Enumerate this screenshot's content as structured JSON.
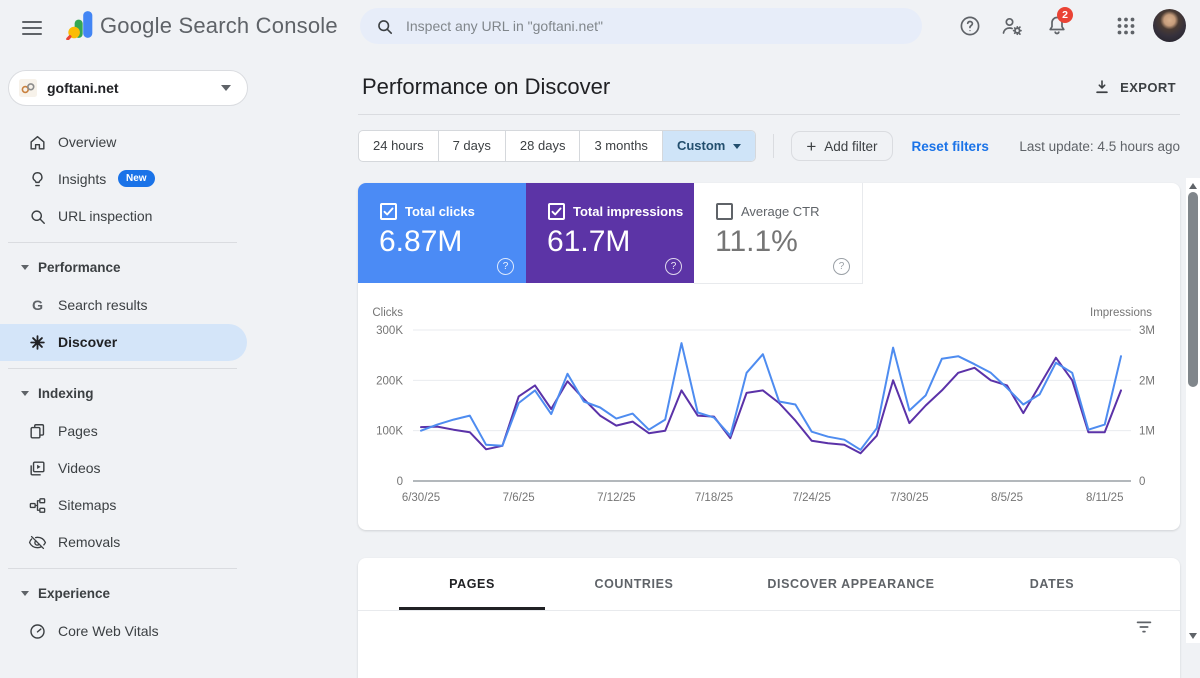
{
  "header": {
    "app_title": "Google Search Console",
    "search_placeholder": "Inspect any URL in \"goftani.net\"",
    "notification_count": "2"
  },
  "sidebar": {
    "property": "goftani.net",
    "items": [
      {
        "label": "Overview"
      },
      {
        "label": "Insights",
        "badge": "New"
      },
      {
        "label": "URL inspection"
      },
      {
        "label": "Performance",
        "type": "section"
      },
      {
        "label": "Search results"
      },
      {
        "label": "Discover",
        "selected": true
      },
      {
        "label": "Indexing",
        "type": "section"
      },
      {
        "label": "Pages"
      },
      {
        "label": "Videos"
      },
      {
        "label": "Sitemaps"
      },
      {
        "label": "Removals"
      },
      {
        "label": "Experience",
        "type": "section"
      },
      {
        "label": "Core Web Vitals"
      }
    ]
  },
  "main": {
    "page_title": "Performance on Discover",
    "export_label": "EXPORT",
    "date_ranges": [
      {
        "label": "24 hours"
      },
      {
        "label": "7 days"
      },
      {
        "label": "28 days"
      },
      {
        "label": "3 months"
      },
      {
        "label": "Custom",
        "selected": true
      }
    ],
    "add_filter_label": "Add filter",
    "reset_filters_label": "Reset filters",
    "last_update": "Last update: 4.5 hours ago",
    "metrics": [
      {
        "label": "Total clicks",
        "value": "6.87M",
        "checked": true,
        "color": "#4b8bf5"
      },
      {
        "label": "Total impressions",
        "value": "61.7M",
        "checked": true,
        "color": "#5c34a6"
      },
      {
        "label": "Average CTR",
        "value": "11.1%",
        "checked": false,
        "color": ""
      }
    ],
    "tabs": [
      {
        "label": "PAGES",
        "active": true
      },
      {
        "label": "COUNTRIES"
      },
      {
        "label": "DISCOVER APPEARANCE"
      },
      {
        "label": "DATES"
      }
    ]
  },
  "chart_data": {
    "type": "line",
    "grid": true,
    "legend_position": "none",
    "dates": [
      "6/30/25",
      "7/1/25",
      "7/2/25",
      "7/3/25",
      "7/4/25",
      "7/5/25",
      "7/6/25",
      "7/7/25",
      "7/8/25",
      "7/9/25",
      "7/10/25",
      "7/11/25",
      "7/12/25",
      "7/13/25",
      "7/14/25",
      "7/15/25",
      "7/16/25",
      "7/17/25",
      "7/18/25",
      "7/19/25",
      "7/20/25",
      "7/21/25",
      "7/22/25",
      "7/23/25",
      "7/24/25",
      "7/25/25",
      "7/26/25",
      "7/27/25",
      "7/28/25",
      "7/29/25",
      "7/30/25",
      "7/31/25",
      "8/1/25",
      "8/2/25",
      "8/3/25",
      "8/4/25",
      "8/5/25",
      "8/6/25",
      "8/7/25",
      "8/8/25",
      "8/9/25",
      "8/10/25",
      "8/11/25",
      "8/12/25"
    ],
    "x_tick_indices": [
      0,
      6,
      12,
      18,
      24,
      30,
      36,
      42
    ],
    "y_left": {
      "label": "Clicks",
      "unit": "K",
      "max": 300,
      "ticks": [
        300,
        200,
        100,
        0
      ]
    },
    "y_right": {
      "label": "Impressions",
      "unit": "M",
      "max": 3,
      "ticks": [
        3,
        2,
        1,
        0
      ]
    },
    "series": [
      {
        "name": "Total clicks",
        "axis": "left",
        "unit": "K",
        "color": "#4e8cf0",
        "values": [
          100,
          112,
          122,
          130,
          72,
          70,
          155,
          180,
          133,
          213,
          158,
          146,
          124,
          134,
          102,
          122,
          274,
          136,
          126,
          90,
          215,
          252,
          158,
          152,
          98,
          88,
          82,
          62,
          105,
          265,
          140,
          170,
          243,
          248,
          232,
          215,
          185,
          152,
          172,
          235,
          215,
          102,
          112,
          248
        ]
      },
      {
        "name": "Total impressions",
        "axis": "right",
        "unit": "M",
        "color": "#5b32a8",
        "values": [
          1.07,
          1.08,
          1.02,
          0.97,
          0.63,
          0.7,
          1.68,
          1.9,
          1.43,
          1.98,
          1.63,
          1.3,
          1.1,
          1.18,
          0.95,
          1.0,
          1.8,
          1.3,
          1.28,
          0.85,
          1.75,
          1.8,
          1.55,
          1.2,
          0.8,
          0.75,
          0.72,
          0.55,
          0.9,
          2.0,
          1.15,
          1.5,
          1.8,
          2.15,
          2.25,
          2.0,
          1.9,
          1.35,
          1.9,
          2.45,
          2.0,
          0.97,
          0.97,
          1.8
        ]
      }
    ]
  }
}
